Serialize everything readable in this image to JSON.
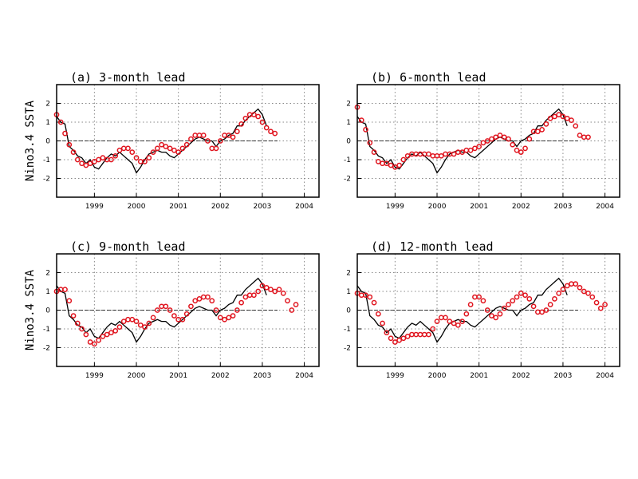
{
  "chart_data": [
    {
      "type": "line",
      "title": "(a) 3-month lead",
      "ylabel": "Nino3.4 SSTA",
      "xlim": [
        1998.1,
        2004.35
      ],
      "ylim": [
        -3,
        3
      ],
      "xticks": [
        1999,
        2000,
        2001,
        2002,
        2003,
        2004
      ],
      "yticks": [
        -2,
        -1,
        0,
        1,
        2
      ],
      "grid": true,
      "series": [
        {
          "color": "#000000",
          "marker": "none",
          "x": [
            1998.1,
            1998.2,
            1998.3,
            1998.4,
            1998.5,
            1998.6,
            1998.7,
            1998.8,
            1998.9,
            1999,
            1999.1,
            1999.2,
            1999.3,
            1999.4,
            1999.5,
            1999.6,
            1999.7,
            1999.8,
            1999.9,
            2000,
            2000.1,
            2000.2,
            2000.3,
            2000.4,
            2000.5,
            2000.6,
            2000.7,
            2000.8,
            2000.9,
            2001,
            2001.1,
            2001.2,
            2001.3,
            2001.4,
            2001.5,
            2001.6,
            2001.7,
            2001.8,
            2001.9,
            2002,
            2002.1,
            2002.2,
            2002.3,
            2002.4,
            2002.5,
            2002.6,
            2002.7,
            2002.8,
            2002.9,
            2003,
            2003.1
          ],
          "values": [
            1.3,
            1.0,
            0.9,
            -0.3,
            -0.5,
            -0.8,
            -0.9,
            -1.2,
            -1.0,
            -1.4,
            -1.5,
            -1.2,
            -0.9,
            -0.7,
            -0.8,
            -0.6,
            -0.8,
            -1.0,
            -1.2,
            -1.7,
            -1.4,
            -1.0,
            -0.7,
            -0.6,
            -0.5,
            -0.6,
            -0.6,
            -0.8,
            -0.9,
            -0.7,
            -0.5,
            -0.3,
            -0.1,
            0.1,
            0.2,
            0.1,
            0.0,
            0.0,
            -0.3,
            0.0,
            0.1,
            0.3,
            0.4,
            0.8,
            0.8,
            1.1,
            1.3,
            1.5,
            1.7,
            1.4,
            0.8
          ]
        },
        {
          "color": "#e0141e",
          "marker": "circle",
          "x": [
            1998.1,
            1998.2,
            1998.3,
            1998.4,
            1998.5,
            1998.6,
            1998.7,
            1998.8,
            1998.9,
            1999,
            1999.1,
            1999.2,
            1999.3,
            1999.4,
            1999.5,
            1999.6,
            1999.7,
            1999.8,
            1999.9,
            2000,
            2000.1,
            2000.2,
            2000.3,
            2000.4,
            2000.5,
            2000.6,
            2000.7,
            2000.8,
            2000.9,
            2001,
            2001.1,
            2001.2,
            2001.3,
            2001.4,
            2001.5,
            2001.6,
            2001.7,
            2001.8,
            2001.9,
            2002,
            2002.1,
            2002.2,
            2002.3,
            2002.4,
            2002.5,
            2002.6,
            2002.7,
            2002.8,
            2002.9,
            2003,
            2003.1,
            2003.2,
            2003.3
          ],
          "values": [
            1.4,
            1.0,
            0.4,
            -0.2,
            -0.6,
            -1.0,
            -1.2,
            -1.3,
            -1.2,
            -1.1,
            -1.0,
            -0.9,
            -1.0,
            -1.0,
            -0.8,
            -0.5,
            -0.4,
            -0.4,
            -0.6,
            -0.9,
            -1.1,
            -1.1,
            -0.9,
            -0.6,
            -0.4,
            -0.2,
            -0.3,
            -0.4,
            -0.5,
            -0.6,
            -0.4,
            -0.2,
            0.1,
            0.3,
            0.3,
            0.3,
            0.0,
            -0.4,
            -0.4,
            0.0,
            0.3,
            0.3,
            0.2,
            0.5,
            0.9,
            1.2,
            1.4,
            1.4,
            1.3,
            1.0,
            0.7,
            0.5,
            0.4
          ]
        }
      ]
    },
    {
      "type": "line",
      "title": "(b) 6-month lead",
      "xlim": [
        1998.1,
        2004.35
      ],
      "ylim": [
        -3,
        3
      ],
      "xticks": [
        1999,
        2000,
        2001,
        2002,
        2003,
        2004
      ],
      "yticks": [
        -2,
        -1,
        0,
        1,
        2
      ],
      "grid": true,
      "series": [
        {
          "color": "#000000",
          "marker": "none",
          "x": [
            1998.1,
            1998.2,
            1998.3,
            1998.4,
            1998.5,
            1998.6,
            1998.7,
            1998.8,
            1998.9,
            1999,
            1999.1,
            1999.2,
            1999.3,
            1999.4,
            1999.5,
            1999.6,
            1999.7,
            1999.8,
            1999.9,
            2000,
            2000.1,
            2000.2,
            2000.3,
            2000.4,
            2000.5,
            2000.6,
            2000.7,
            2000.8,
            2000.9,
            2001,
            2001.1,
            2001.2,
            2001.3,
            2001.4,
            2001.5,
            2001.6,
            2001.7,
            2001.8,
            2001.9,
            2002,
            2002.1,
            2002.2,
            2002.3,
            2002.4,
            2002.5,
            2002.6,
            2002.7,
            2002.8,
            2002.9,
            2003,
            2003.1
          ],
          "values": [
            1.3,
            1.0,
            0.9,
            -0.3,
            -0.5,
            -0.8,
            -0.9,
            -1.2,
            -1.0,
            -1.4,
            -1.5,
            -1.2,
            -0.9,
            -0.7,
            -0.8,
            -0.6,
            -0.8,
            -1.0,
            -1.2,
            -1.7,
            -1.4,
            -1.0,
            -0.7,
            -0.6,
            -0.5,
            -0.6,
            -0.6,
            -0.8,
            -0.9,
            -0.7,
            -0.5,
            -0.3,
            -0.1,
            0.1,
            0.2,
            0.1,
            0.0,
            0.0,
            -0.3,
            0.0,
            0.1,
            0.3,
            0.4,
            0.8,
            0.8,
            1.1,
            1.3,
            1.5,
            1.7,
            1.4,
            0.8
          ]
        },
        {
          "color": "#e0141e",
          "marker": "circle",
          "x": [
            1998.1,
            1998.2,
            1998.3,
            1998.4,
            1998.5,
            1998.6,
            1998.7,
            1998.8,
            1998.9,
            1999,
            1999.1,
            1999.2,
            1999.3,
            1999.4,
            1999.5,
            1999.6,
            1999.7,
            1999.8,
            1999.9,
            2000,
            2000.1,
            2000.2,
            2000.3,
            2000.4,
            2000.5,
            2000.6,
            2000.7,
            2000.8,
            2000.9,
            2001,
            2001.1,
            2001.2,
            2001.3,
            2001.4,
            2001.5,
            2001.6,
            2001.7,
            2001.8,
            2001.9,
            2002,
            2002.1,
            2002.2,
            2002.3,
            2002.4,
            2002.5,
            2002.6,
            2002.7,
            2002.8,
            2002.9,
            2003,
            2003.1,
            2003.2,
            2003.3,
            2003.4,
            2003.5,
            2003.6
          ],
          "values": [
            1.8,
            1.1,
            0.6,
            -0.1,
            -0.6,
            -1.1,
            -1.2,
            -1.2,
            -1.3,
            -1.4,
            -1.3,
            -1.0,
            -0.8,
            -0.7,
            -0.7,
            -0.7,
            -0.7,
            -0.7,
            -0.8,
            -0.8,
            -0.8,
            -0.7,
            -0.7,
            -0.7,
            -0.6,
            -0.6,
            -0.5,
            -0.5,
            -0.4,
            -0.3,
            -0.1,
            0.0,
            0.1,
            0.2,
            0.3,
            0.2,
            0.1,
            -0.2,
            -0.5,
            -0.6,
            -0.4,
            0.1,
            0.5,
            0.5,
            0.6,
            0.9,
            1.2,
            1.3,
            1.4,
            1.3,
            1.2,
            1.1,
            0.8,
            0.3,
            0.2,
            0.2
          ]
        }
      ]
    },
    {
      "type": "line",
      "title": "(c) 9-month lead",
      "ylabel": "Nino3.4 SSTA",
      "xlim": [
        1998.1,
        2004.35
      ],
      "ylim": [
        -3,
        3
      ],
      "xticks": [
        1999,
        2000,
        2001,
        2002,
        2003,
        2004
      ],
      "yticks": [
        -2,
        -1,
        0,
        1,
        2
      ],
      "grid": true,
      "series": [
        {
          "color": "#000000",
          "marker": "none",
          "x": [
            1998.1,
            1998.2,
            1998.3,
            1998.4,
            1998.5,
            1998.6,
            1998.7,
            1998.8,
            1998.9,
            1999,
            1999.1,
            1999.2,
            1999.3,
            1999.4,
            1999.5,
            1999.6,
            1999.7,
            1999.8,
            1999.9,
            2000,
            2000.1,
            2000.2,
            2000.3,
            2000.4,
            2000.5,
            2000.6,
            2000.7,
            2000.8,
            2000.9,
            2001,
            2001.1,
            2001.2,
            2001.3,
            2001.4,
            2001.5,
            2001.6,
            2001.7,
            2001.8,
            2001.9,
            2002,
            2002.1,
            2002.2,
            2002.3,
            2002.4,
            2002.5,
            2002.6,
            2002.7,
            2002.8,
            2002.9,
            2003,
            2003.1
          ],
          "values": [
            1.3,
            1.0,
            0.9,
            -0.3,
            -0.5,
            -0.8,
            -0.9,
            -1.2,
            -1.0,
            -1.4,
            -1.5,
            -1.2,
            -0.9,
            -0.7,
            -0.8,
            -0.6,
            -0.8,
            -1.0,
            -1.2,
            -1.7,
            -1.4,
            -1.0,
            -0.7,
            -0.6,
            -0.5,
            -0.6,
            -0.6,
            -0.8,
            -0.9,
            -0.7,
            -0.5,
            -0.3,
            -0.1,
            0.1,
            0.2,
            0.1,
            0.0,
            0.0,
            -0.3,
            0.0,
            0.1,
            0.3,
            0.4,
            0.8,
            0.8,
            1.1,
            1.3,
            1.5,
            1.7,
            1.4,
            0.8
          ]
        },
        {
          "color": "#e0141e",
          "marker": "circle",
          "x": [
            1998.1,
            1998.2,
            1998.3,
            1998.4,
            1998.5,
            1998.6,
            1998.7,
            1998.8,
            1998.9,
            1999,
            1999.1,
            1999.2,
            1999.3,
            1999.4,
            1999.5,
            1999.6,
            1999.7,
            1999.8,
            1999.9,
            2000,
            2000.1,
            2000.2,
            2000.3,
            2000.4,
            2000.5,
            2000.6,
            2000.7,
            2000.8,
            2000.9,
            2001,
            2001.1,
            2001.2,
            2001.3,
            2001.4,
            2001.5,
            2001.6,
            2001.7,
            2001.8,
            2001.9,
            2002,
            2002.1,
            2002.2,
            2002.3,
            2002.4,
            2002.5,
            2002.6,
            2002.7,
            2002.8,
            2002.9,
            2003,
            2003.1,
            2003.2,
            2003.3,
            2003.4,
            2003.5,
            2003.6,
            2003.7,
            2003.8
          ],
          "values": [
            1.0,
            1.1,
            1.1,
            0.5,
            -0.3,
            -0.7,
            -1.0,
            -1.3,
            -1.7,
            -1.8,
            -1.6,
            -1.4,
            -1.3,
            -1.2,
            -1.1,
            -0.9,
            -0.6,
            -0.5,
            -0.5,
            -0.6,
            -0.8,
            -0.9,
            -0.7,
            -0.4,
            0.0,
            0.2,
            0.2,
            0.0,
            -0.3,
            -0.5,
            -0.5,
            -0.2,
            0.2,
            0.5,
            0.6,
            0.7,
            0.7,
            0.5,
            0.0,
            -0.4,
            -0.5,
            -0.4,
            -0.3,
            0.0,
            0.4,
            0.7,
            0.8,
            0.8,
            1.0,
            1.3,
            1.2,
            1.1,
            1.0,
            1.1,
            0.9,
            0.5,
            0.0,
            0.3
          ]
        }
      ]
    },
    {
      "type": "line",
      "title": "(d) 12-month lead",
      "xlim": [
        1998.1,
        2004.35
      ],
      "ylim": [
        -3,
        3
      ],
      "xticks": [
        1999,
        2000,
        2001,
        2002,
        2003,
        2004
      ],
      "yticks": [
        -2,
        -1,
        0,
        1,
        2
      ],
      "grid": true,
      "series": [
        {
          "color": "#000000",
          "marker": "none",
          "x": [
            1998.1,
            1998.2,
            1998.3,
            1998.4,
            1998.5,
            1998.6,
            1998.7,
            1998.8,
            1998.9,
            1999,
            1999.1,
            1999.2,
            1999.3,
            1999.4,
            1999.5,
            1999.6,
            1999.7,
            1999.8,
            1999.9,
            2000,
            2000.1,
            2000.2,
            2000.3,
            2000.4,
            2000.5,
            2000.6,
            2000.7,
            2000.8,
            2000.9,
            2001,
            2001.1,
            2001.2,
            2001.3,
            2001.4,
            2001.5,
            2001.6,
            2001.7,
            2001.8,
            2001.9,
            2002,
            2002.1,
            2002.2,
            2002.3,
            2002.4,
            2002.5,
            2002.6,
            2002.7,
            2002.8,
            2002.9,
            2003,
            2003.1
          ],
          "values": [
            1.3,
            1.0,
            0.9,
            -0.3,
            -0.5,
            -0.8,
            -0.9,
            -1.2,
            -1.0,
            -1.4,
            -1.5,
            -1.2,
            -0.9,
            -0.7,
            -0.8,
            -0.6,
            -0.8,
            -1.0,
            -1.2,
            -1.7,
            -1.4,
            -1.0,
            -0.7,
            -0.6,
            -0.5,
            -0.6,
            -0.6,
            -0.8,
            -0.9,
            -0.7,
            -0.5,
            -0.3,
            -0.1,
            0.1,
            0.2,
            0.1,
            0.0,
            0.0,
            -0.3,
            0.0,
            0.1,
            0.3,
            0.4,
            0.8,
            0.8,
            1.1,
            1.3,
            1.5,
            1.7,
            1.4,
            0.8
          ]
        },
        {
          "color": "#e0141e",
          "marker": "circle",
          "x": [
            1998.1,
            1998.2,
            1998.3,
            1998.4,
            1998.5,
            1998.6,
            1998.7,
            1998.8,
            1998.9,
            1999,
            1999.1,
            1999.2,
            1999.3,
            1999.4,
            1999.5,
            1999.6,
            1999.7,
            1999.8,
            1999.9,
            2000,
            2000.1,
            2000.2,
            2000.3,
            2000.4,
            2000.5,
            2000.6,
            2000.7,
            2000.8,
            2000.9,
            2001,
            2001.1,
            2001.2,
            2001.3,
            2001.4,
            2001.5,
            2001.6,
            2001.7,
            2001.8,
            2001.9,
            2002,
            2002.1,
            2002.2,
            2002.3,
            2002.4,
            2002.5,
            2002.6,
            2002.7,
            2002.8,
            2002.9,
            2003,
            2003.1,
            2003.2,
            2003.3,
            2003.4,
            2003.5,
            2003.6,
            2003.7,
            2003.8,
            2003.9,
            2004
          ],
          "values": [
            0.9,
            0.8,
            0.8,
            0.7,
            0.4,
            -0.2,
            -0.7,
            -1.2,
            -1.5,
            -1.7,
            -1.6,
            -1.5,
            -1.4,
            -1.3,
            -1.3,
            -1.3,
            -1.3,
            -1.3,
            -1.0,
            -0.6,
            -0.4,
            -0.4,
            -0.6,
            -0.7,
            -0.8,
            -0.6,
            -0.2,
            0.3,
            0.7,
            0.7,
            0.5,
            0.0,
            -0.3,
            -0.4,
            -0.2,
            0.1,
            0.3,
            0.5,
            0.7,
            0.9,
            0.8,
            0.6,
            0.2,
            -0.1,
            -0.1,
            0.0,
            0.3,
            0.6,
            0.9,
            1.1,
            1.3,
            1.4,
            1.4,
            1.2,
            1.0,
            0.9,
            0.7,
            0.4,
            0.1,
            0.3
          ]
        }
      ]
    }
  ]
}
